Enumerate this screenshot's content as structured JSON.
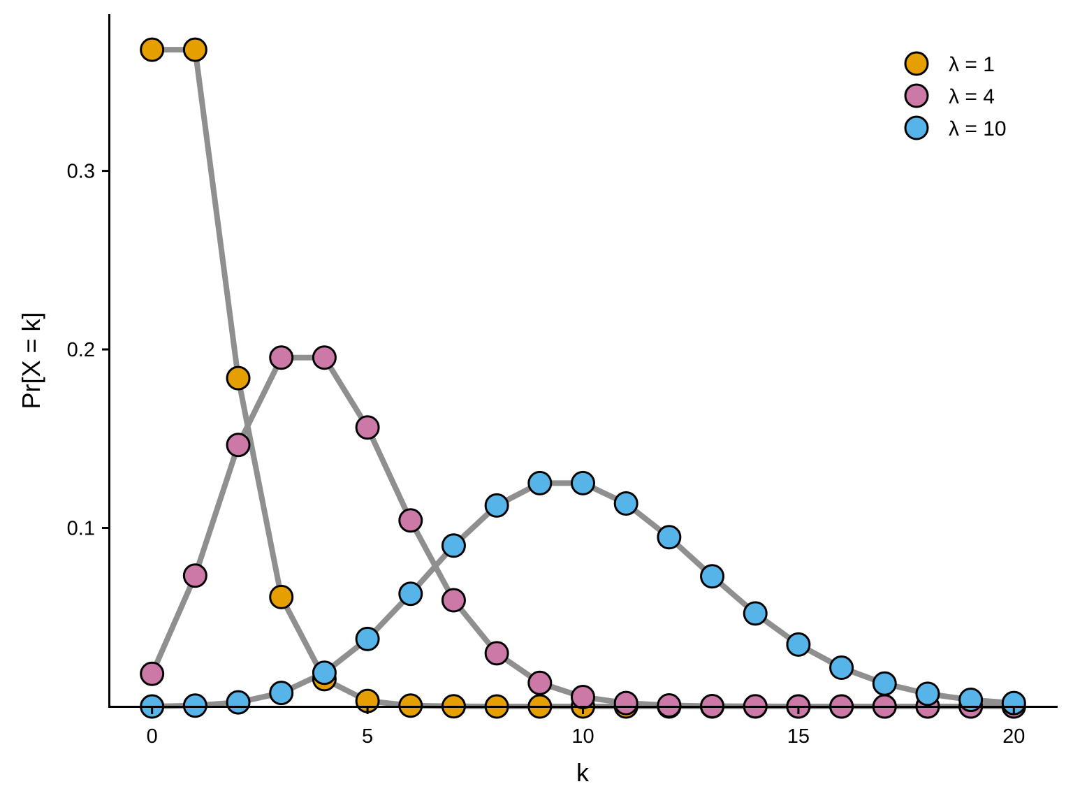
{
  "chart_data": {
    "type": "line",
    "xlabel": "k",
    "ylabel": "Pr[X = k]",
    "xlim": [
      -1,
      21
    ],
    "ylim": [
      0,
      0.3879
    ],
    "x_ticks": [
      0,
      5,
      10,
      15,
      20
    ],
    "x_tick_labels": [
      "0",
      "5",
      "10",
      "15",
      "20"
    ],
    "y_ticks": [
      0.1,
      0.2,
      0.3
    ],
    "y_tick_labels": [
      "0.1",
      "0.2",
      "0.3"
    ],
    "grid": false,
    "legend_position": "top-right",
    "line_color": "#8f8f8f",
    "marker_outline": "#000000",
    "x": [
      0,
      1,
      2,
      3,
      4,
      5,
      6,
      7,
      8,
      9,
      10,
      11,
      12,
      13,
      14,
      15,
      16,
      17,
      18,
      19,
      20
    ],
    "series": [
      {
        "name": "λ = 1",
        "color": "#E69F00",
        "values": [
          0.3679,
          0.3679,
          0.1839,
          0.0613,
          0.0153,
          0.0031,
          0.0005,
          0.0001,
          0.0,
          0.0,
          0.0,
          0.0,
          0.0,
          0.0,
          0.0,
          0.0,
          0.0,
          0.0,
          0.0,
          0.0,
          0.0
        ]
      },
      {
        "name": "λ = 4",
        "color": "#CC79A7",
        "values": [
          0.0183,
          0.0733,
          0.1465,
          0.1954,
          0.1954,
          0.1563,
          0.1042,
          0.0595,
          0.0298,
          0.0132,
          0.0053,
          0.0019,
          0.0006,
          0.0002,
          0.0001,
          0.0,
          0.0,
          0.0,
          0.0,
          0.0,
          0.0
        ]
      },
      {
        "name": "λ = 10",
        "color": "#56B4E9",
        "values": [
          0.0,
          0.0005,
          0.0023,
          0.0076,
          0.0189,
          0.0378,
          0.0631,
          0.0901,
          0.1126,
          0.1251,
          0.1251,
          0.1137,
          0.0948,
          0.0729,
          0.0521,
          0.0347,
          0.0217,
          0.0128,
          0.0071,
          0.0037,
          0.0019
        ]
      }
    ]
  }
}
